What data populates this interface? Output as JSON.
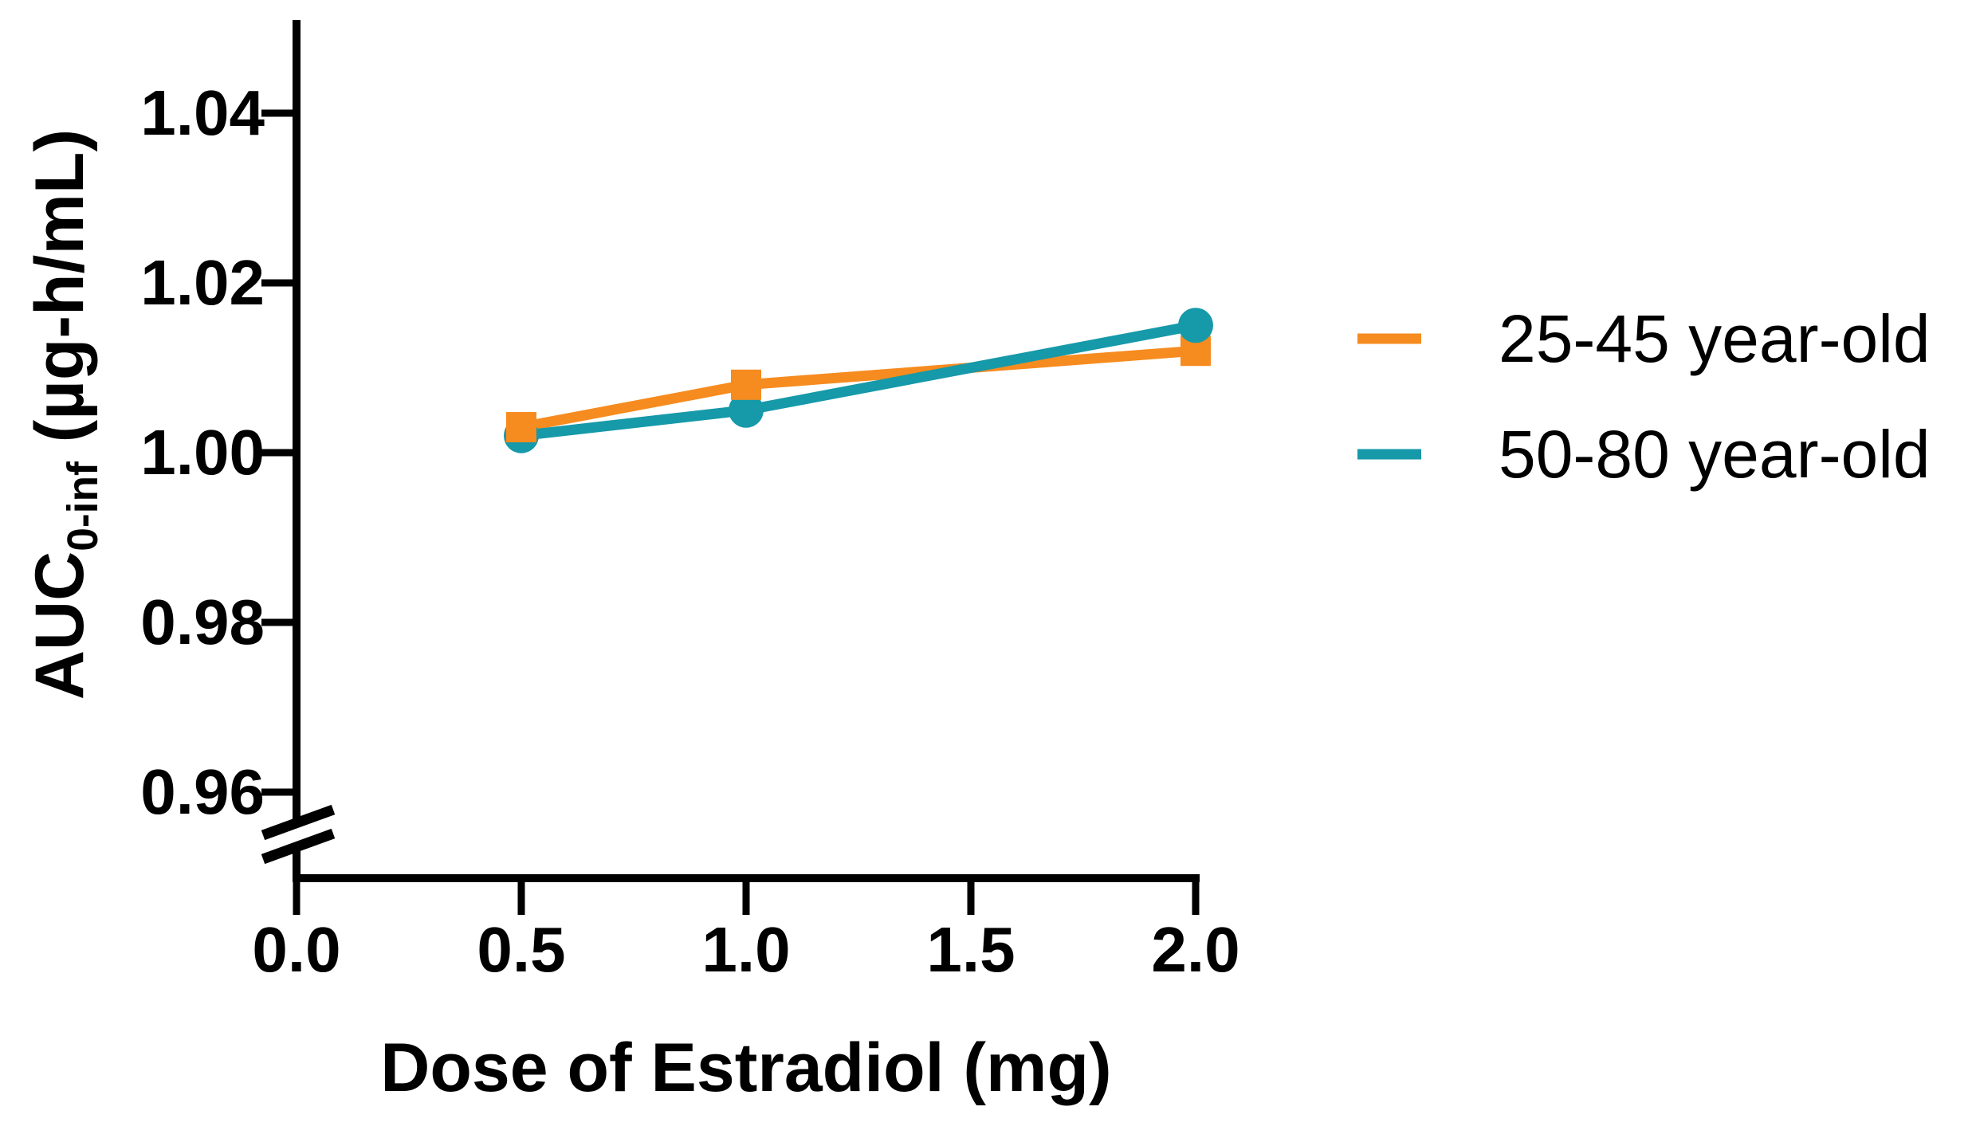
{
  "figure": {
    "background": "#FFFFFF",
    "axis_color": "#000000"
  },
  "chart_data": {
    "type": "line",
    "title": "",
    "xlabel": "Dose of Estradiol (mg)",
    "ylabel_main": "AUC",
    "ylabel_sub": "0-inf",
    "ylabel_unit": " (µg-h/mL)",
    "x": [
      0.5,
      1.0,
      2.0
    ],
    "series": [
      {
        "name": "25-45 year-old",
        "color": "#F68B1F",
        "marker": "square",
        "values": [
          1.003,
          1.008,
          1.012
        ]
      },
      {
        "name": "50-80 year-old",
        "color": "#1699A9",
        "marker": "circle",
        "values": [
          1.002,
          1.005,
          1.015
        ]
      }
    ],
    "xticks": [
      0.0,
      0.5,
      1.0,
      1.5,
      2.0
    ],
    "xtick_labels": [
      "0.0",
      "0.5",
      "1.0",
      "1.5",
      "2.0"
    ],
    "yticks": [
      1.04,
      1.02,
      1.0,
      0.98,
      0.96
    ],
    "ytick_labels": [
      "1.04",
      "1.02",
      "1.00",
      "0.98",
      "0.96"
    ],
    "xlim": [
      0.0,
      2.0
    ],
    "ylim_display": [
      0.955,
      1.05
    ],
    "axis_break": true,
    "grid": false,
    "legend_position": "right"
  },
  "legend": {
    "items": [
      {
        "label": "25-45 year-old",
        "color": "#F68B1F"
      },
      {
        "label": "50-80 year-old",
        "color": "#1699A9"
      }
    ]
  }
}
